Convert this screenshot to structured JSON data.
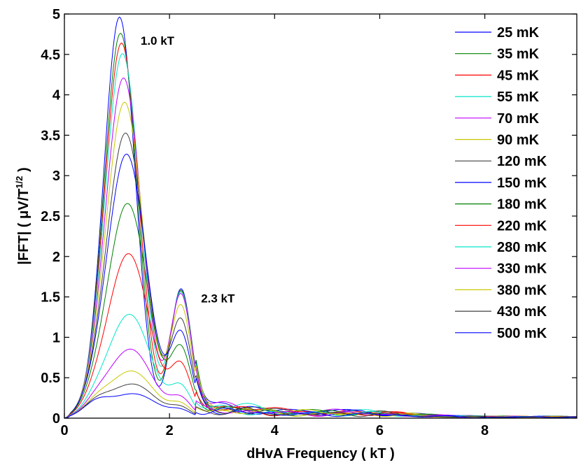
{
  "chart_data": {
    "type": "line",
    "xlabel": "dHvA Frequency ( kT )",
    "ylabel": "|FFT| ( μV/T^1/2 )",
    "ylabel_parts": {
      "prefix": "|FFT| ( μV/T",
      "sup": "1/2",
      "suffix": " )"
    },
    "xlim": [
      0,
      9.75
    ],
    "ylim": [
      0,
      5
    ],
    "x_ticks": [
      "0",
      "2",
      "4",
      "6",
      "8"
    ],
    "x_tick_values": [
      0,
      2,
      4,
      6,
      8
    ],
    "y_ticks": [
      "0",
      "0.5",
      "1",
      "1.5",
      "2",
      "2.5",
      "3",
      "3.5",
      "4",
      "4.5",
      "5"
    ],
    "y_tick_values": [
      0,
      0.5,
      1,
      1.5,
      2,
      2.5,
      3,
      3.5,
      4,
      4.5,
      5
    ],
    "grid": false,
    "legend_position": "top-right",
    "annotations": [
      {
        "text": "1.0 kT",
        "x": 1.45,
        "y": 4.62
      },
      {
        "text": "2.3 kT",
        "x": 2.6,
        "y": 1.43
      }
    ],
    "series": [
      {
        "name": "25 mK",
        "color": "#0000ff",
        "peak1": 4.95,
        "peak2": 1.6
      },
      {
        "name": "35 mK",
        "color": "#008000",
        "peak1": 4.75,
        "peak2": 1.58
      },
      {
        "name": "45 mK",
        "color": "#ff0000",
        "peak1": 4.63,
        "peak2": 1.56
      },
      {
        "name": "55 mK",
        "color": "#00e6c8",
        "peak1": 4.5,
        "peak2": 1.55
      },
      {
        "name": "70 mK",
        "color": "#bf00ff",
        "peak1": 4.2,
        "peak2": 1.52
      },
      {
        "name": "90 mK",
        "color": "#c8c800",
        "peak1": 3.9,
        "peak2": 1.37
      },
      {
        "name": "120 mK",
        "color": "#404040",
        "peak1": 3.52,
        "peak2": 1.19
      },
      {
        "name": "150 mK",
        "color": "#0000ff",
        "peak1": 3.26,
        "peak2": 1.02
      },
      {
        "name": "180 mK",
        "color": "#008000",
        "peak1": 2.65,
        "peak2": 0.83
      },
      {
        "name": "220 mK",
        "color": "#ff0000",
        "peak1": 2.03,
        "peak2": 0.62
      },
      {
        "name": "280 mK",
        "color": "#00e6c8",
        "peak1": 1.28,
        "peak2": 0.36
      },
      {
        "name": "330 mK",
        "color": "#bf00ff",
        "peak1": 0.85,
        "peak2": 0.22
      },
      {
        "name": "380 mK",
        "color": "#c8c800",
        "peak1": 0.58,
        "peak2": 0.15
      },
      {
        "name": "430 mK",
        "color": "#404040",
        "peak1": 0.42,
        "peak2": 0.11
      },
      {
        "name": "500 mK",
        "color": "#0000ff",
        "peak1": 0.3,
        "peak2": 0.08
      }
    ]
  }
}
